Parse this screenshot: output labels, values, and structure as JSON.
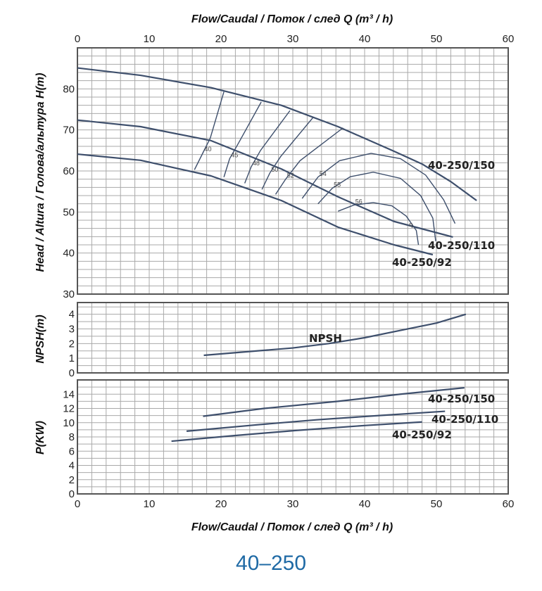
{
  "chart_data": [
    {
      "type": "line",
      "panel": "head",
      "title": "Flow/Caudal  /  Поток / след   Q (m³ / h)",
      "xlabel": "Flow/Caudal  /  Поток / след   Q (m³ / h)",
      "ylabel": "Head / Altura  /  Голова/альтура H(m)",
      "xlim": [
        0,
        60
      ],
      "ylim": [
        30,
        90
      ],
      "x_ticks": [
        "0",
        "10",
        "20",
        "30",
        "40",
        "50",
        "60"
      ],
      "y_ticks": [
        "30",
        "40",
        "50",
        "60",
        "70",
        "80"
      ],
      "grid": true,
      "series": [
        {
          "name": "40-250/150",
          "points": [
            [
              0,
              85.1
            ],
            [
              8.8,
              83.3
            ],
            [
              18.6,
              80.3
            ],
            [
              28.4,
              76
            ],
            [
              36.3,
              70.8
            ],
            [
              44.1,
              64.8
            ],
            [
              48,
              61.7
            ],
            [
              52,
              57.4
            ],
            [
              55.6,
              52.8
            ]
          ]
        },
        {
          "name": "40-250/110",
          "points": [
            [
              0,
              72.4
            ],
            [
              8.8,
              70.8
            ],
            [
              18.6,
              67.4
            ],
            [
              28.4,
              60.5
            ],
            [
              36.3,
              53.7
            ],
            [
              44.1,
              47.7
            ],
            [
              52.3,
              43.9
            ]
          ]
        },
        {
          "name": "40-250/92",
          "points": [
            [
              0,
              64.1
            ],
            [
              8.8,
              62.6
            ],
            [
              18.6,
              58.8
            ],
            [
              28.4,
              52.8
            ],
            [
              36.3,
              46.3
            ],
            [
              44.1,
              42
            ],
            [
              49.5,
              39.6
            ]
          ]
        }
      ],
      "efficiency_curves": [
        {
          "label": "40",
          "points": [
            [
              16.3,
              60.3
            ],
            [
              17.5,
              64.5
            ],
            [
              18.5,
              68
            ],
            [
              20.4,
              79.3
            ]
          ]
        },
        {
          "label": "45",
          "points": [
            [
              20.4,
              58.5
            ],
            [
              21.2,
              63
            ],
            [
              22.5,
              67
            ],
            [
              25.6,
              76.8
            ]
          ]
        },
        {
          "label": "48",
          "points": [
            [
              23.3,
              57
            ],
            [
              24.2,
              61
            ],
            [
              25.5,
              65
            ],
            [
              29.6,
              74.7
            ]
          ]
        },
        {
          "label": "50",
          "points": [
            [
              25.7,
              55.5
            ],
            [
              26.8,
              59.5
            ],
            [
              28.3,
              63.5
            ],
            [
              32.8,
              73
            ]
          ]
        },
        {
          "label": "52",
          "points": [
            [
              27.6,
              54.3
            ],
            [
              29,
              58
            ],
            [
              31,
              62.5
            ],
            [
              37,
              70.5
            ]
          ]
        },
        {
          "label": "54",
          "points": [
            [
              31.3,
              53.3
            ],
            [
              33.5,
              58.5
            ],
            [
              36.5,
              62.5
            ],
            [
              40.9,
              64.3
            ],
            [
              45,
              63
            ],
            [
              48.5,
              59
            ],
            [
              51,
              53
            ],
            [
              52.6,
              47.2
            ]
          ]
        },
        {
          "label": "55",
          "points": [
            [
              33.5,
              52
            ],
            [
              35.5,
              55.8
            ],
            [
              38,
              58.6
            ],
            [
              41.2,
              59.7
            ],
            [
              45,
              58.2
            ],
            [
              47.8,
              54
            ],
            [
              49.5,
              48.5
            ],
            [
              49.9,
              42.9
            ]
          ]
        },
        {
          "label": "56",
          "points": [
            [
              36.3,
              50.2
            ],
            [
              38.5,
              51.7
            ],
            [
              41.2,
              52.3
            ],
            [
              43.8,
              51.5
            ],
            [
              45.8,
              49
            ],
            [
              47.2,
              45.5
            ],
            [
              47.5,
              42
            ]
          ]
        }
      ],
      "efficiency_symbol": "η"
    },
    {
      "type": "line",
      "panel": "npsh",
      "ylabel": "NPSH(m)",
      "xlim": [
        0,
        60
      ],
      "ylim": [
        0,
        4.8
      ],
      "y_ticks": [
        "0",
        "1",
        "2",
        "3",
        "4"
      ],
      "grid": true,
      "series": [
        {
          "name": "NPSH",
          "points": [
            [
              17.6,
              1.2
            ],
            [
              25,
              1.5
            ],
            [
              30,
              1.7
            ],
            [
              35,
              2.0
            ],
            [
              40,
              2.4
            ],
            [
              45,
              2.9
            ],
            [
              50,
              3.4
            ],
            [
              54.1,
              4.0
            ]
          ]
        }
      ]
    },
    {
      "type": "line",
      "panel": "power",
      "xlabel": "Flow/Caudal  /  Поток / след   Q (m³ / h)",
      "ylabel": "P(KW)",
      "xlim": [
        0,
        60
      ],
      "ylim": [
        0,
        16
      ],
      "x_ticks": [
        "0",
        "10",
        "20",
        "30",
        "40",
        "50",
        "60"
      ],
      "y_ticks": [
        "0",
        "2",
        "4",
        "6",
        "8",
        "10",
        "12",
        "14"
      ],
      "grid": true,
      "series": [
        {
          "name": "40-250/150",
          "points": [
            [
              17.5,
              10.9
            ],
            [
              26,
              12.0
            ],
            [
              36.3,
              13.0
            ],
            [
              45,
              14.0
            ],
            [
              53.9,
              14.9
            ]
          ]
        },
        {
          "name": "40-250/110",
          "points": [
            [
              15.2,
              8.8
            ],
            [
              25,
              9.7
            ],
            [
              33.3,
              10.4
            ],
            [
              42,
              11.0
            ],
            [
              51.2,
              11.6
            ]
          ]
        },
        {
          "name": "40-250/92",
          "points": [
            [
              13.1,
              7.4
            ],
            [
              22,
              8.2
            ],
            [
              30.4,
              8.9
            ],
            [
              40,
              9.6
            ],
            [
              48,
              10.1
            ]
          ]
        }
      ]
    }
  ],
  "footer": {
    "model": "40–250"
  },
  "colors": {
    "curve": "#3e4f6c",
    "grid": "#a9a9a9",
    "frame": "#555555",
    "footer": "#1f6aa5"
  }
}
